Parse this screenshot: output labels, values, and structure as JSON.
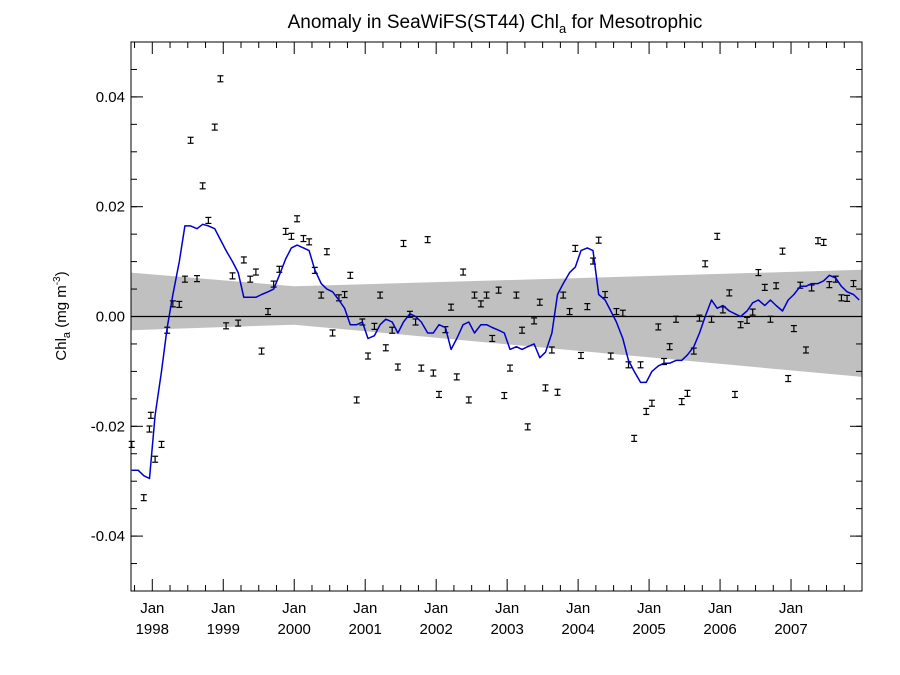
{
  "chart_data": {
    "type": "scatter",
    "title": "Anomaly in SeaWiFS(ST44) Chl",
    "title_subscript": "a",
    "title_suffix": " for Mesotrophic",
    "ylabel_main": "Chl",
    "ylabel_sub": "a",
    "ylabel_units": " (mg m",
    "ylabel_sup": "-3",
    "ylabel_close": ")",
    "ylim": [
      -0.05,
      0.05
    ],
    "xlim": [
      1997.7,
      2008.0
    ],
    "yticks": [
      {
        "value": 0.04,
        "label": "0.04"
      },
      {
        "value": 0.02,
        "label": "0.02"
      },
      {
        "value": 0.0,
        "label": "0.00"
      },
      {
        "value": -0.02,
        "label": "-0.02"
      },
      {
        "value": -0.04,
        "label": "-0.04"
      }
    ],
    "xticks": [
      {
        "value": 1998.0,
        "month": "Jan",
        "year": "1998"
      },
      {
        "value": 1999.0,
        "month": "Jan",
        "year": "1999"
      },
      {
        "value": 2000.0,
        "month": "Jan",
        "year": "2000"
      },
      {
        "value": 2001.0,
        "month": "Jan",
        "year": "2001"
      },
      {
        "value": 2002.0,
        "month": "Jan",
        "year": "2002"
      },
      {
        "value": 2003.0,
        "month": "Jan",
        "year": "2003"
      },
      {
        "value": 2004.0,
        "month": "Jan",
        "year": "2004"
      },
      {
        "value": 2005.0,
        "month": "Jan",
        "year": "2005"
      },
      {
        "value": 2006.0,
        "month": "Jan",
        "year": "2006"
      },
      {
        "value": 2007.0,
        "month": "Jan",
        "year": "2007"
      }
    ],
    "grid": false,
    "zero_line": true,
    "colors": {
      "points": "#000000",
      "smoothed_line": "#0000cc",
      "band": "#c0c0c0",
      "zero_line": "#000000"
    },
    "confidence_band": {
      "x": [
        1997.7,
        2000.0,
        2008.0
      ],
      "upper": [
        0.008,
        0.0055,
        0.0085
      ],
      "lower": [
        -0.0025,
        -0.0015,
        -0.011
      ]
    },
    "monthly_anomalies": [
      [
        1997.71,
        -0.0233
      ],
      [
        1997.88,
        -0.033
      ],
      [
        1997.96,
        -0.0205
      ],
      [
        1997.98,
        -0.018
      ],
      [
        1998.04,
        -0.026
      ],
      [
        1998.13,
        -0.0233
      ],
      [
        1998.21,
        -0.0025
      ],
      [
        1998.29,
        0.0023
      ],
      [
        1998.38,
        0.0022
      ],
      [
        1998.46,
        0.0068
      ],
      [
        1998.54,
        0.0321
      ],
      [
        1998.63,
        0.0069
      ],
      [
        1998.71,
        0.0238
      ],
      [
        1998.79,
        0.0175
      ],
      [
        1998.88,
        0.0345
      ],
      [
        1998.96,
        0.0433
      ],
      [
        1999.04,
        -0.0017
      ],
      [
        1999.13,
        0.0074
      ],
      [
        1999.21,
        -0.0012
      ],
      [
        1999.29,
        0.0103
      ],
      [
        1999.38,
        0.0068
      ],
      [
        1999.46,
        0.0081
      ],
      [
        1999.54,
        -0.0063
      ],
      [
        1999.63,
        0.0009
      ],
      [
        1999.71,
        0.0059
      ],
      [
        1999.79,
        0.0086
      ],
      [
        1999.88,
        0.0155
      ],
      [
        1999.96,
        0.0146
      ],
      [
        2000.04,
        0.0178
      ],
      [
        2000.13,
        0.0142
      ],
      [
        2000.21,
        0.0136
      ],
      [
        2000.29,
        0.0084
      ],
      [
        2000.38,
        0.0039
      ],
      [
        2000.46,
        0.0118
      ],
      [
        2000.54,
        -0.003
      ],
      [
        2000.63,
        0.0034
      ],
      [
        2000.71,
        0.004
      ],
      [
        2000.79,
        0.0075
      ],
      [
        2000.88,
        -0.0152
      ],
      [
        2000.96,
        -0.001
      ],
      [
        2001.04,
        -0.0072
      ],
      [
        2001.13,
        -0.0018
      ],
      [
        2001.21,
        0.0039
      ],
      [
        2001.29,
        -0.0057
      ],
      [
        2001.38,
        -0.0025
      ],
      [
        2001.46,
        -0.0092
      ],
      [
        2001.54,
        0.0133
      ],
      [
        2001.63,
        0.0004
      ],
      [
        2001.71,
        -0.001
      ],
      [
        2001.79,
        -0.0094
      ],
      [
        2001.88,
        0.014
      ],
      [
        2001.96,
        -0.0103
      ],
      [
        2002.04,
        -0.0142
      ],
      [
        2002.13,
        -0.0024
      ],
      [
        2002.21,
        0.0017
      ],
      [
        2002.29,
        -0.011
      ],
      [
        2002.38,
        0.0081
      ],
      [
        2002.46,
        -0.0152
      ],
      [
        2002.54,
        0.0039
      ],
      [
        2002.63,
        0.0023
      ],
      [
        2002.71,
        0.0039
      ],
      [
        2002.79,
        -0.004
      ],
      [
        2002.88,
        0.0048
      ],
      [
        2002.96,
        -0.0144
      ],
      [
        2003.04,
        -0.0094
      ],
      [
        2003.13,
        0.0039
      ],
      [
        2003.21,
        -0.0025
      ],
      [
        2003.29,
        -0.0201
      ],
      [
        2003.38,
        -0.0008
      ],
      [
        2003.46,
        0.0026
      ],
      [
        2003.54,
        -0.013
      ],
      [
        2003.63,
        -0.0061
      ],
      [
        2003.71,
        -0.0138
      ],
      [
        2003.79,
        0.0039
      ],
      [
        2003.88,
        0.0009
      ],
      [
        2003.96,
        0.0124
      ],
      [
        2004.04,
        -0.0071
      ],
      [
        2004.13,
        0.0018
      ],
      [
        2004.21,
        0.0101
      ],
      [
        2004.29,
        0.0139
      ],
      [
        2004.38,
        0.004
      ],
      [
        2004.46,
        -0.0072
      ],
      [
        2004.54,
        0.0009
      ],
      [
        2004.63,
        0.0006
      ],
      [
        2004.71,
        -0.0088
      ],
      [
        2004.79,
        -0.0222
      ],
      [
        2004.88,
        -0.0088
      ],
      [
        2004.96,
        -0.0173
      ],
      [
        2005.04,
        -0.0158
      ],
      [
        2005.13,
        -0.0019
      ],
      [
        2005.21,
        -0.0082
      ],
      [
        2005.29,
        -0.0055
      ],
      [
        2005.38,
        -0.0005
      ],
      [
        2005.46,
        -0.0155
      ],
      [
        2005.54,
        -0.014
      ],
      [
        2005.63,
        -0.0063
      ],
      [
        2005.71,
        -0.0003
      ],
      [
        2005.79,
        0.0096
      ],
      [
        2005.88,
        -0.0005
      ],
      [
        2005.96,
        0.0146
      ],
      [
        2006.04,
        0.0012
      ],
      [
        2006.13,
        0.0043
      ],
      [
        2006.21,
        -0.0142
      ],
      [
        2006.29,
        -0.0015
      ],
      [
        2006.38,
        -0.0007
      ],
      [
        2006.46,
        0.0008
      ],
      [
        2006.54,
        0.008
      ],
      [
        2006.63,
        0.0053
      ],
      [
        2006.71,
        -0.0005
      ],
      [
        2006.79,
        0.0056
      ],
      [
        2006.88,
        0.0119
      ],
      [
        2006.96,
        -0.0113
      ],
      [
        2007.04,
        -0.0022
      ],
      [
        2007.13,
        0.0057
      ],
      [
        2007.21,
        -0.0061
      ],
      [
        2007.29,
        0.0052
      ],
      [
        2007.38,
        0.0138
      ],
      [
        2007.46,
        0.0135
      ],
      [
        2007.54,
        0.0058
      ],
      [
        2007.63,
        0.0068
      ],
      [
        2007.71,
        0.0034
      ],
      [
        2007.79,
        0.0033
      ],
      [
        2007.88,
        0.006
      ]
    ],
    "smoothed": [
      [
        1997.71,
        -0.028
      ],
      [
        1997.8,
        -0.028
      ],
      [
        1997.88,
        -0.029
      ],
      [
        1997.96,
        -0.0295
      ],
      [
        1998.04,
        -0.018
      ],
      [
        1998.13,
        -0.01
      ],
      [
        1998.21,
        -0.002
      ],
      [
        1998.29,
        0.004
      ],
      [
        1998.38,
        0.01
      ],
      [
        1998.46,
        0.0165
      ],
      [
        1998.54,
        0.0165
      ],
      [
        1998.63,
        0.016
      ],
      [
        1998.71,
        0.0168
      ],
      [
        1998.79,
        0.0165
      ],
      [
        1998.88,
        0.016
      ],
      [
        1998.96,
        0.014
      ],
      [
        1999.04,
        0.012
      ],
      [
        1999.13,
        0.01
      ],
      [
        1999.21,
        0.008
      ],
      [
        1999.29,
        0.0035
      ],
      [
        1999.38,
        0.0035
      ],
      [
        1999.46,
        0.0035
      ],
      [
        1999.54,
        0.004
      ],
      [
        1999.63,
        0.0045
      ],
      [
        1999.71,
        0.005
      ],
      [
        1999.79,
        0.0075
      ],
      [
        1999.88,
        0.0105
      ],
      [
        1999.96,
        0.0125
      ],
      [
        2000.04,
        0.013
      ],
      [
        2000.13,
        0.0125
      ],
      [
        2000.21,
        0.012
      ],
      [
        2000.29,
        0.0085
      ],
      [
        2000.38,
        0.006
      ],
      [
        2000.46,
        0.005
      ],
      [
        2000.54,
        0.0045
      ],
      [
        2000.63,
        0.003
      ],
      [
        2000.71,
        0.0015
      ],
      [
        2000.79,
        -0.0015
      ],
      [
        2000.88,
        -0.0015
      ],
      [
        2000.96,
        -0.001
      ],
      [
        2001.04,
        -0.004
      ],
      [
        2001.13,
        -0.0035
      ],
      [
        2001.21,
        -0.0015
      ],
      [
        2001.29,
        -0.0005
      ],
      [
        2001.38,
        -0.001
      ],
      [
        2001.46,
        -0.003
      ],
      [
        2001.54,
        -0.001
      ],
      [
        2001.63,
        0.0005
      ],
      [
        2001.71,
        0.0
      ],
      [
        2001.79,
        -0.001
      ],
      [
        2001.88,
        -0.003
      ],
      [
        2001.96,
        -0.003
      ],
      [
        2002.04,
        -0.0015
      ],
      [
        2002.13,
        -0.002
      ],
      [
        2002.21,
        -0.006
      ],
      [
        2002.29,
        -0.004
      ],
      [
        2002.38,
        -0.0015
      ],
      [
        2002.46,
        -0.001
      ],
      [
        2002.54,
        -0.003
      ],
      [
        2002.63,
        -0.0015
      ],
      [
        2002.71,
        -0.0015
      ],
      [
        2002.79,
        -0.002
      ],
      [
        2002.88,
        -0.0025
      ],
      [
        2002.96,
        -0.003
      ],
      [
        2003.04,
        -0.006
      ],
      [
        2003.13,
        -0.0055
      ],
      [
        2003.21,
        -0.006
      ],
      [
        2003.29,
        -0.0055
      ],
      [
        2003.38,
        -0.005
      ],
      [
        2003.46,
        -0.0075
      ],
      [
        2003.54,
        -0.0065
      ],
      [
        2003.63,
        -0.003
      ],
      [
        2003.71,
        0.004
      ],
      [
        2003.79,
        0.006
      ],
      [
        2003.88,
        0.008
      ],
      [
        2003.96,
        0.009
      ],
      [
        2004.04,
        0.012
      ],
      [
        2004.13,
        0.0125
      ],
      [
        2004.21,
        0.012
      ],
      [
        2004.29,
        0.004
      ],
      [
        2004.38,
        0.003
      ],
      [
        2004.46,
        0.001
      ],
      [
        2004.54,
        -0.001
      ],
      [
        2004.63,
        -0.004
      ],
      [
        2004.71,
        -0.008
      ],
      [
        2004.79,
        -0.01
      ],
      [
        2004.88,
        -0.012
      ],
      [
        2004.96,
        -0.012
      ],
      [
        2005.04,
        -0.01
      ],
      [
        2005.13,
        -0.009
      ],
      [
        2005.21,
        -0.0085
      ],
      [
        2005.29,
        -0.0085
      ],
      [
        2005.38,
        -0.008
      ],
      [
        2005.46,
        -0.008
      ],
      [
        2005.54,
        -0.007
      ],
      [
        2005.63,
        -0.0055
      ],
      [
        2005.71,
        -0.003
      ],
      [
        2005.79,
        0.0
      ],
      [
        2005.88,
        0.003
      ],
      [
        2005.96,
        0.0015
      ],
      [
        2006.04,
        0.002
      ],
      [
        2006.13,
        0.001
      ],
      [
        2006.21,
        0.0005
      ],
      [
        2006.29,
        0.0
      ],
      [
        2006.38,
        0.001
      ],
      [
        2006.46,
        0.0025
      ],
      [
        2006.54,
        0.003
      ],
      [
        2006.63,
        0.002
      ],
      [
        2006.71,
        0.003
      ],
      [
        2006.79,
        0.002
      ],
      [
        2006.88,
        0.001
      ],
      [
        2006.96,
        0.003
      ],
      [
        2007.04,
        0.004
      ],
      [
        2007.13,
        0.0055
      ],
      [
        2007.21,
        0.0055
      ],
      [
        2007.29,
        0.006
      ],
      [
        2007.38,
        0.006
      ],
      [
        2007.46,
        0.0065
      ],
      [
        2007.54,
        0.0075
      ],
      [
        2007.63,
        0.007
      ],
      [
        2007.71,
        0.0055
      ],
      [
        2007.79,
        0.0045
      ],
      [
        2007.88,
        0.004
      ],
      [
        2007.96,
        0.003
      ]
    ]
  }
}
